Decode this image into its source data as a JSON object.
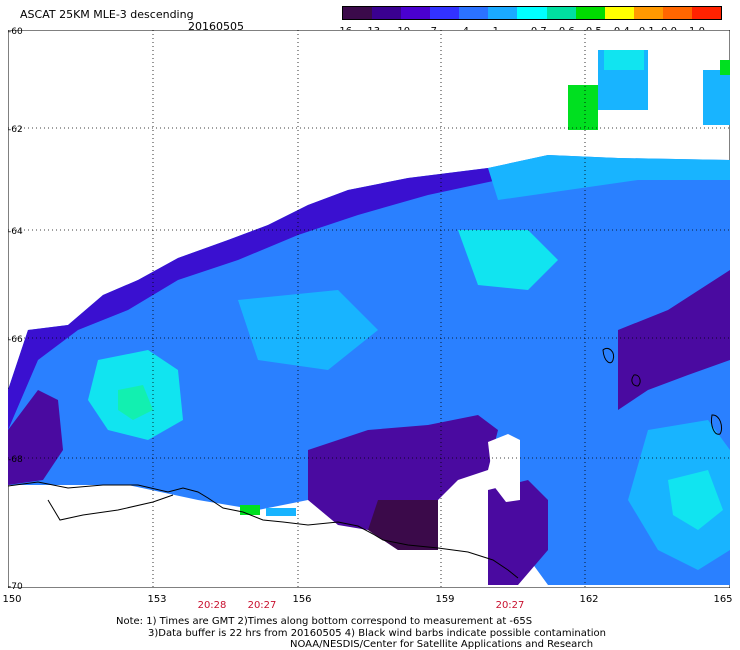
{
  "header": {
    "title": "ASCAT 25KM MLE-3 descending",
    "date": "20160505"
  },
  "colorbar": {
    "labels": [
      "-16",
      "-13",
      "-10",
      "-7",
      "-4",
      "-1",
      "-0.7",
      "-0.6",
      "-0.5",
      "-0.4",
      "-0.1",
      "0.0",
      "1.0"
    ],
    "colors": [
      "#3b0a4a",
      "#3a0090",
      "#4a00d0",
      "#3232ff",
      "#2b72ff",
      "#1aaaff",
      "#00ffff",
      "#00e0a0",
      "#00dd00",
      "#ffff00",
      "#ff9900",
      "#ff6600",
      "#ff2200"
    ]
  },
  "axes": {
    "lat_labels": [
      "-60",
      "-62",
      "-64",
      "-66",
      "-68",
      "-70"
    ],
    "lon_labels": [
      "150",
      "153",
      "156",
      "159",
      "162",
      "165"
    ]
  },
  "time_labels": [
    "20:28",
    "20:27",
    "20:27"
  ],
  "notes": {
    "line1": "Note: 1) Times are GMT 2)Times along bottom correspond to measurement at -65S",
    "line2": "3)Data buffer is 22 hrs from 20160505 4) Black wind barbs indicate possible contamination",
    "line3": "NOAA/NESDIS/Center for Satellite Applications and Research"
  }
}
